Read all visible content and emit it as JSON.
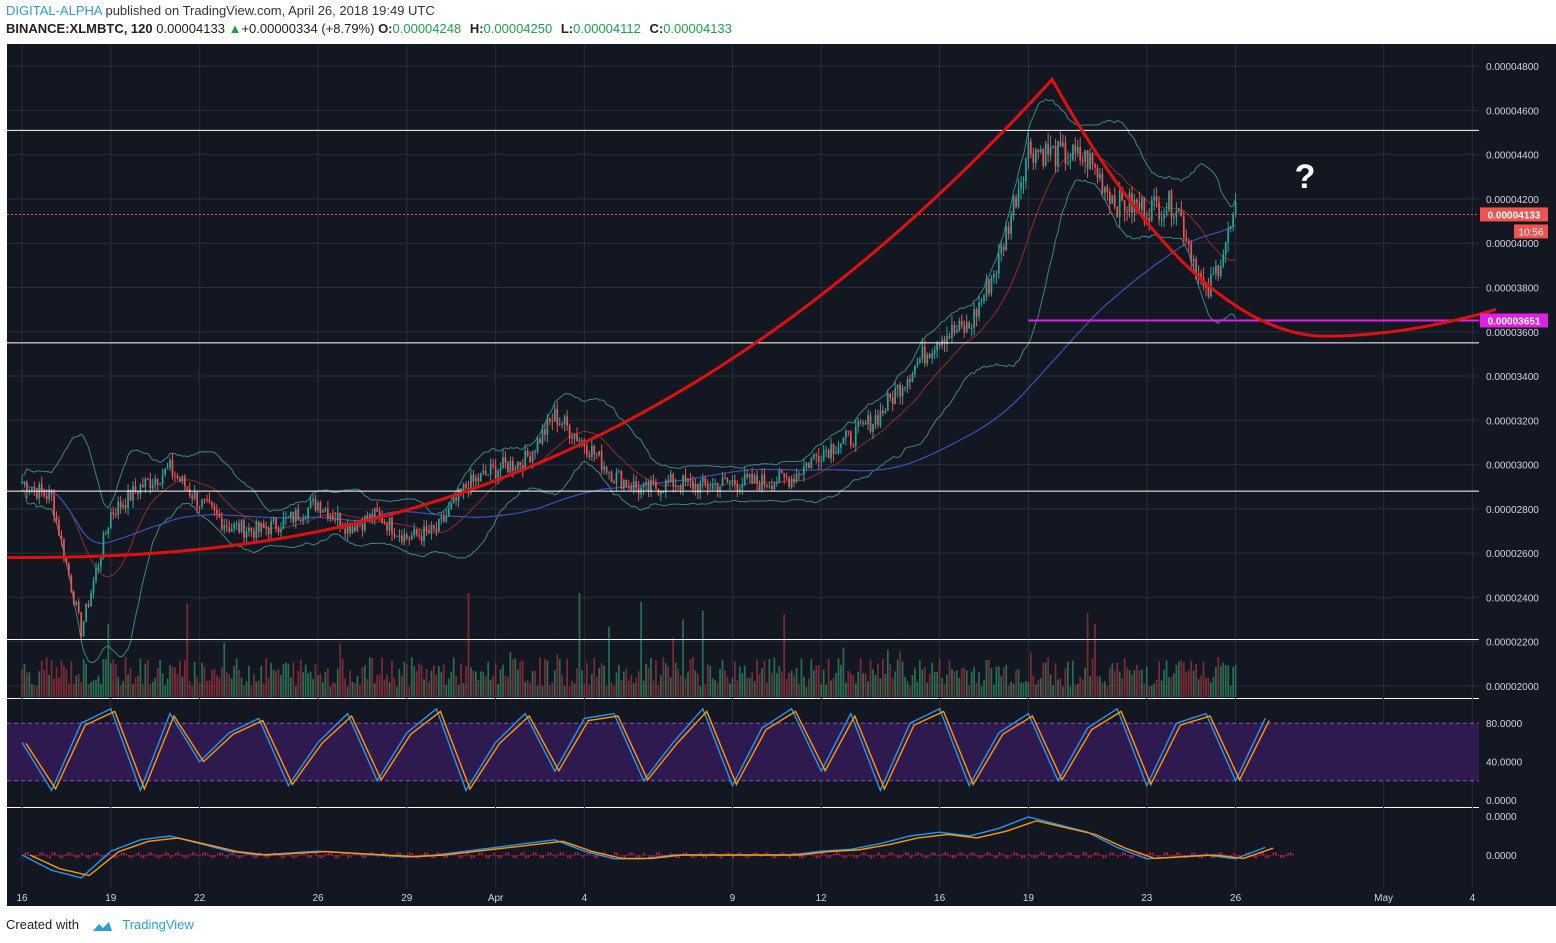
{
  "header": {
    "author": "DIGITAL-ALPHA",
    "published": "published on TradingView.com, April 26, 2018 19:49 UTC",
    "symbol": "BINANCE:XLMBTC, 120",
    "last": "0.00004133",
    "change_arrow": "▲",
    "change": "+0.00000334 (+8.79%)",
    "o_label": "O:",
    "o_value": "0.00004248",
    "h_label": "H:",
    "h_value": "0.00004250",
    "l_label": "L:",
    "l_value": "0.00004112",
    "c_label": "C:",
    "c_value": "0.00004133"
  },
  "footer": {
    "created_with": "Created with",
    "brand": "TradingView"
  },
  "annotation": {
    "question_mark": "?"
  },
  "colors": {
    "background": "#131722",
    "grid": "#2a2e39",
    "axis_text": "#d1d4dc",
    "up": "#26a69a",
    "down": "#ef5350",
    "cup_curve": "#e01010",
    "support_line": "#e020e0",
    "hline": "#ffffff",
    "rsi_fill": "#2e1a4f",
    "k_line": "#2196f3",
    "d_line": "#ff9800",
    "macd_hist": "#e91e63"
  },
  "chart_data": [
    {
      "type": "candlestick",
      "y_axis": {
        "range": [
          1.95e-05,
          4.9e-05
        ],
        "ticks": [
          "0.00004800",
          "0.00004600",
          "0.00004400",
          "0.00004200",
          "0.00004000",
          "0.00003800",
          "0.00003600",
          "0.00003400",
          "0.00003200",
          "0.00003000",
          "0.00002800",
          "0.00002600",
          "0.00002400",
          "0.00002200",
          "0.00002000"
        ],
        "scale": "linear"
      },
      "x_axis": {
        "ticks": [
          "16",
          "19",
          "22",
          "26",
          "29",
          "Apr",
          "4",
          "9",
          "12",
          "16",
          "19",
          "23",
          "26",
          "May",
          "4"
        ]
      },
      "close_series": [
        {
          "date": "Mar 16",
          "close": 2.92e-05
        },
        {
          "date": "Mar 17",
          "close": 2.85e-05
        },
        {
          "date": "Mar 18",
          "close": 2.25e-05
        },
        {
          "date": "Mar 19",
          "close": 2.78e-05
        },
        {
          "date": "Mar 20",
          "close": 2.9e-05
        },
        {
          "date": "Mar 21",
          "close": 2.98e-05
        },
        {
          "date": "Mar 22",
          "close": 2.83e-05
        },
        {
          "date": "Mar 23",
          "close": 2.72e-05
        },
        {
          "date": "Mar 24",
          "close": 2.7e-05
        },
        {
          "date": "Mar 25",
          "close": 2.75e-05
        },
        {
          "date": "Mar 26",
          "close": 2.83e-05
        },
        {
          "date": "Mar 27",
          "close": 2.72e-05
        },
        {
          "date": "Mar 28",
          "close": 2.77e-05
        },
        {
          "date": "Mar 29",
          "close": 2.67e-05
        },
        {
          "date": "Mar 30",
          "close": 2.7e-05
        },
        {
          "date": "Mar 31",
          "close": 2.9e-05
        },
        {
          "date": "Apr 1",
          "close": 2.98e-05
        },
        {
          "date": "Apr 2",
          "close": 3.02e-05
        },
        {
          "date": "Apr 3",
          "close": 3.22e-05
        },
        {
          "date": "Apr 4",
          "close": 3.1e-05
        },
        {
          "date": "Apr 5",
          "close": 2.95e-05
        },
        {
          "date": "Apr 6",
          "close": 2.88e-05
        },
        {
          "date": "Apr 7",
          "close": 2.92e-05
        },
        {
          "date": "Apr 8",
          "close": 2.9e-05
        },
        {
          "date": "Apr 9",
          "close": 2.92e-05
        },
        {
          "date": "Apr 10",
          "close": 2.92e-05
        },
        {
          "date": "Apr 11",
          "close": 2.94e-05
        },
        {
          "date": "Apr 12",
          "close": 3.06e-05
        },
        {
          "date": "Apr 13",
          "close": 3.12e-05
        },
        {
          "date": "Apr 14",
          "close": 3.23e-05
        },
        {
          "date": "Apr 15",
          "close": 3.42e-05
        },
        {
          "date": "Apr 16",
          "close": 3.58e-05
        },
        {
          "date": "Apr 17",
          "close": 3.62e-05
        },
        {
          "date": "Apr 18",
          "close": 3.92e-05
        },
        {
          "date": "Apr 19",
          "close": 4.43e-05
        },
        {
          "date": "Apr 20",
          "close": 4.4e-05
        },
        {
          "date": "Apr 21",
          "close": 4.38e-05
        },
        {
          "date": "Apr 22",
          "close": 4.18e-05
        },
        {
          "date": "Apr 23",
          "close": 4.16e-05
        },
        {
          "date": "Apr 24",
          "close": 4.18e-05
        },
        {
          "date": "Apr 25",
          "close": 3.75e-05
        },
        {
          "date": "Apr 26",
          "close": 4.13e-05
        }
      ],
      "annotations": {
        "horizontal_lines": [
          4.51e-05,
          3.55e-05,
          2.88e-05,
          2.21e-05
        ],
        "support_level": 3.651e-05,
        "support_label": "0.00003651",
        "last_price_label": "0.00004133",
        "countdown_label": "10:56"
      }
    },
    {
      "type": "line",
      "name": "Stochastic RSI",
      "y_axis": {
        "ticks": [
          "80.0000",
          "40.0000",
          "0.0000"
        ],
        "range": [
          0,
          100
        ]
      },
      "k_values": [
        60,
        10,
        80,
        95,
        10,
        90,
        40,
        70,
        85,
        15,
        60,
        90,
        20,
        70,
        95,
        10,
        60,
        90,
        30,
        85,
        90,
        20,
        60,
        95,
        15,
        75,
        95,
        30,
        90,
        10,
        80,
        95,
        15,
        70,
        90,
        20,
        75,
        95,
        15,
        80,
        90,
        20,
        85
      ]
    },
    {
      "type": "line",
      "name": "MACD",
      "y_axis": {
        "ticks": [
          "0.0000",
          "0.0000"
        ]
      },
      "macd_values": [
        0,
        -0.4,
        -0.6,
        0.1,
        0.4,
        0.5,
        0.3,
        0.1,
        0.0,
        0.05,
        0.1,
        0.05,
        0.0,
        -0.05,
        0.0,
        0.1,
        0.2,
        0.3,
        0.4,
        0.1,
        -0.1,
        -0.1,
        0.0,
        0.0,
        0.0,
        0.0,
        0.0,
        0.1,
        0.15,
        0.3,
        0.5,
        0.6,
        0.5,
        0.7,
        1.0,
        0.8,
        0.6,
        0.2,
        -0.1,
        -0.05,
        0.0,
        -0.1,
        0.2
      ]
    }
  ]
}
